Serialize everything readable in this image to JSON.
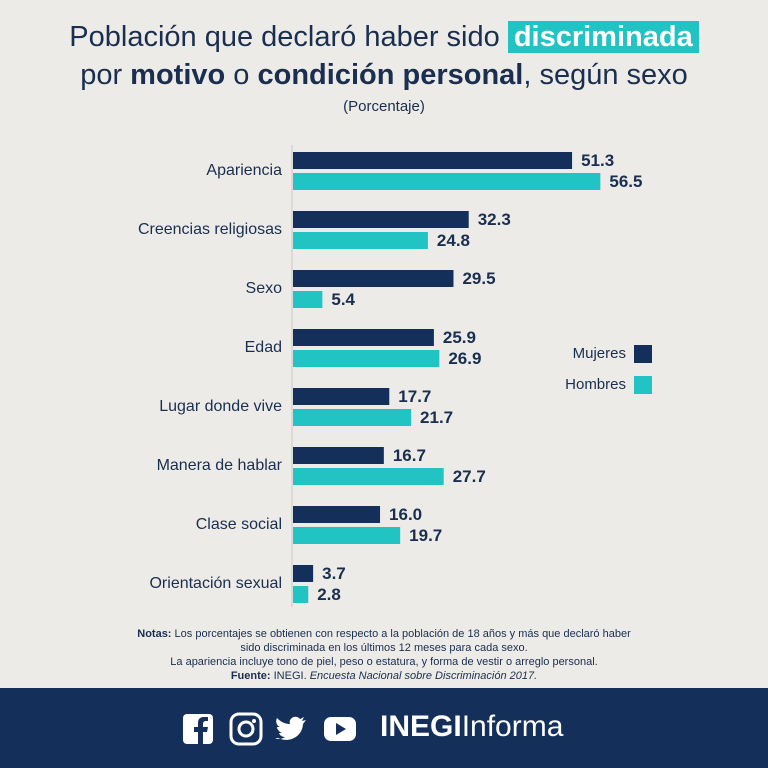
{
  "chart_data": {
    "type": "bar",
    "orientation": "horizontal",
    "title_parts": [
      [
        {
          "text": "Población que declaró haber sido ",
          "style": "plain"
        },
        {
          "text": "discriminada",
          "style": "highlight"
        }
      ],
      [
        {
          "text": "por ",
          "style": "plain"
        },
        {
          "text": "motivo",
          "style": "bold"
        },
        {
          "text": " o ",
          "style": "plain"
        },
        {
          "text": "condición personal",
          "style": "bold"
        },
        {
          "text": ", según sexo",
          "style": "plain"
        }
      ]
    ],
    "subtitle": "(Porcentaje)",
    "categories": [
      "Apariencia",
      "Creencias religiosas",
      "Sexo",
      "Edad",
      "Lugar donde vive",
      "Manera de hablar",
      "Clase social",
      "Orientación sexual"
    ],
    "series": [
      {
        "name": "Mujeres",
        "color": "#14305a",
        "values": [
          51.3,
          32.3,
          29.5,
          25.9,
          17.7,
          16.7,
          16.0,
          3.7
        ],
        "value_labels": [
          "51.3",
          "32.3",
          "29.5",
          "25.9",
          "17.7",
          "16.7",
          "16.0",
          "3.7"
        ]
      },
      {
        "name": "Hombres",
        "color": "#22c3c3",
        "values": [
          56.5,
          24.8,
          5.4,
          26.9,
          21.7,
          27.7,
          19.7,
          2.8
        ],
        "value_labels": [
          "56.5",
          "24.8",
          "5.4",
          "26.9",
          "21.7",
          "27.7",
          "19.7",
          "2.8"
        ]
      }
    ],
    "legend": "right"
  },
  "notes": {
    "label": "Notas:",
    "lines": [
      "Los porcentajes se obtienen con respecto a la población de 18 años y más que declaró haber",
      "sido discriminada en los últimos 12 meses para cada sexo.",
      "La apariencia incluye tono de piel, peso o estatura, y forma de vestir o arreglo personal."
    ],
    "source_label": "Fuente:",
    "source_org": "INEGI.",
    "source_title": "Encuesta Nacional sobre Discriminación 2017."
  },
  "footer": {
    "brand_bold": "INEGI",
    "brand": "Informa"
  }
}
